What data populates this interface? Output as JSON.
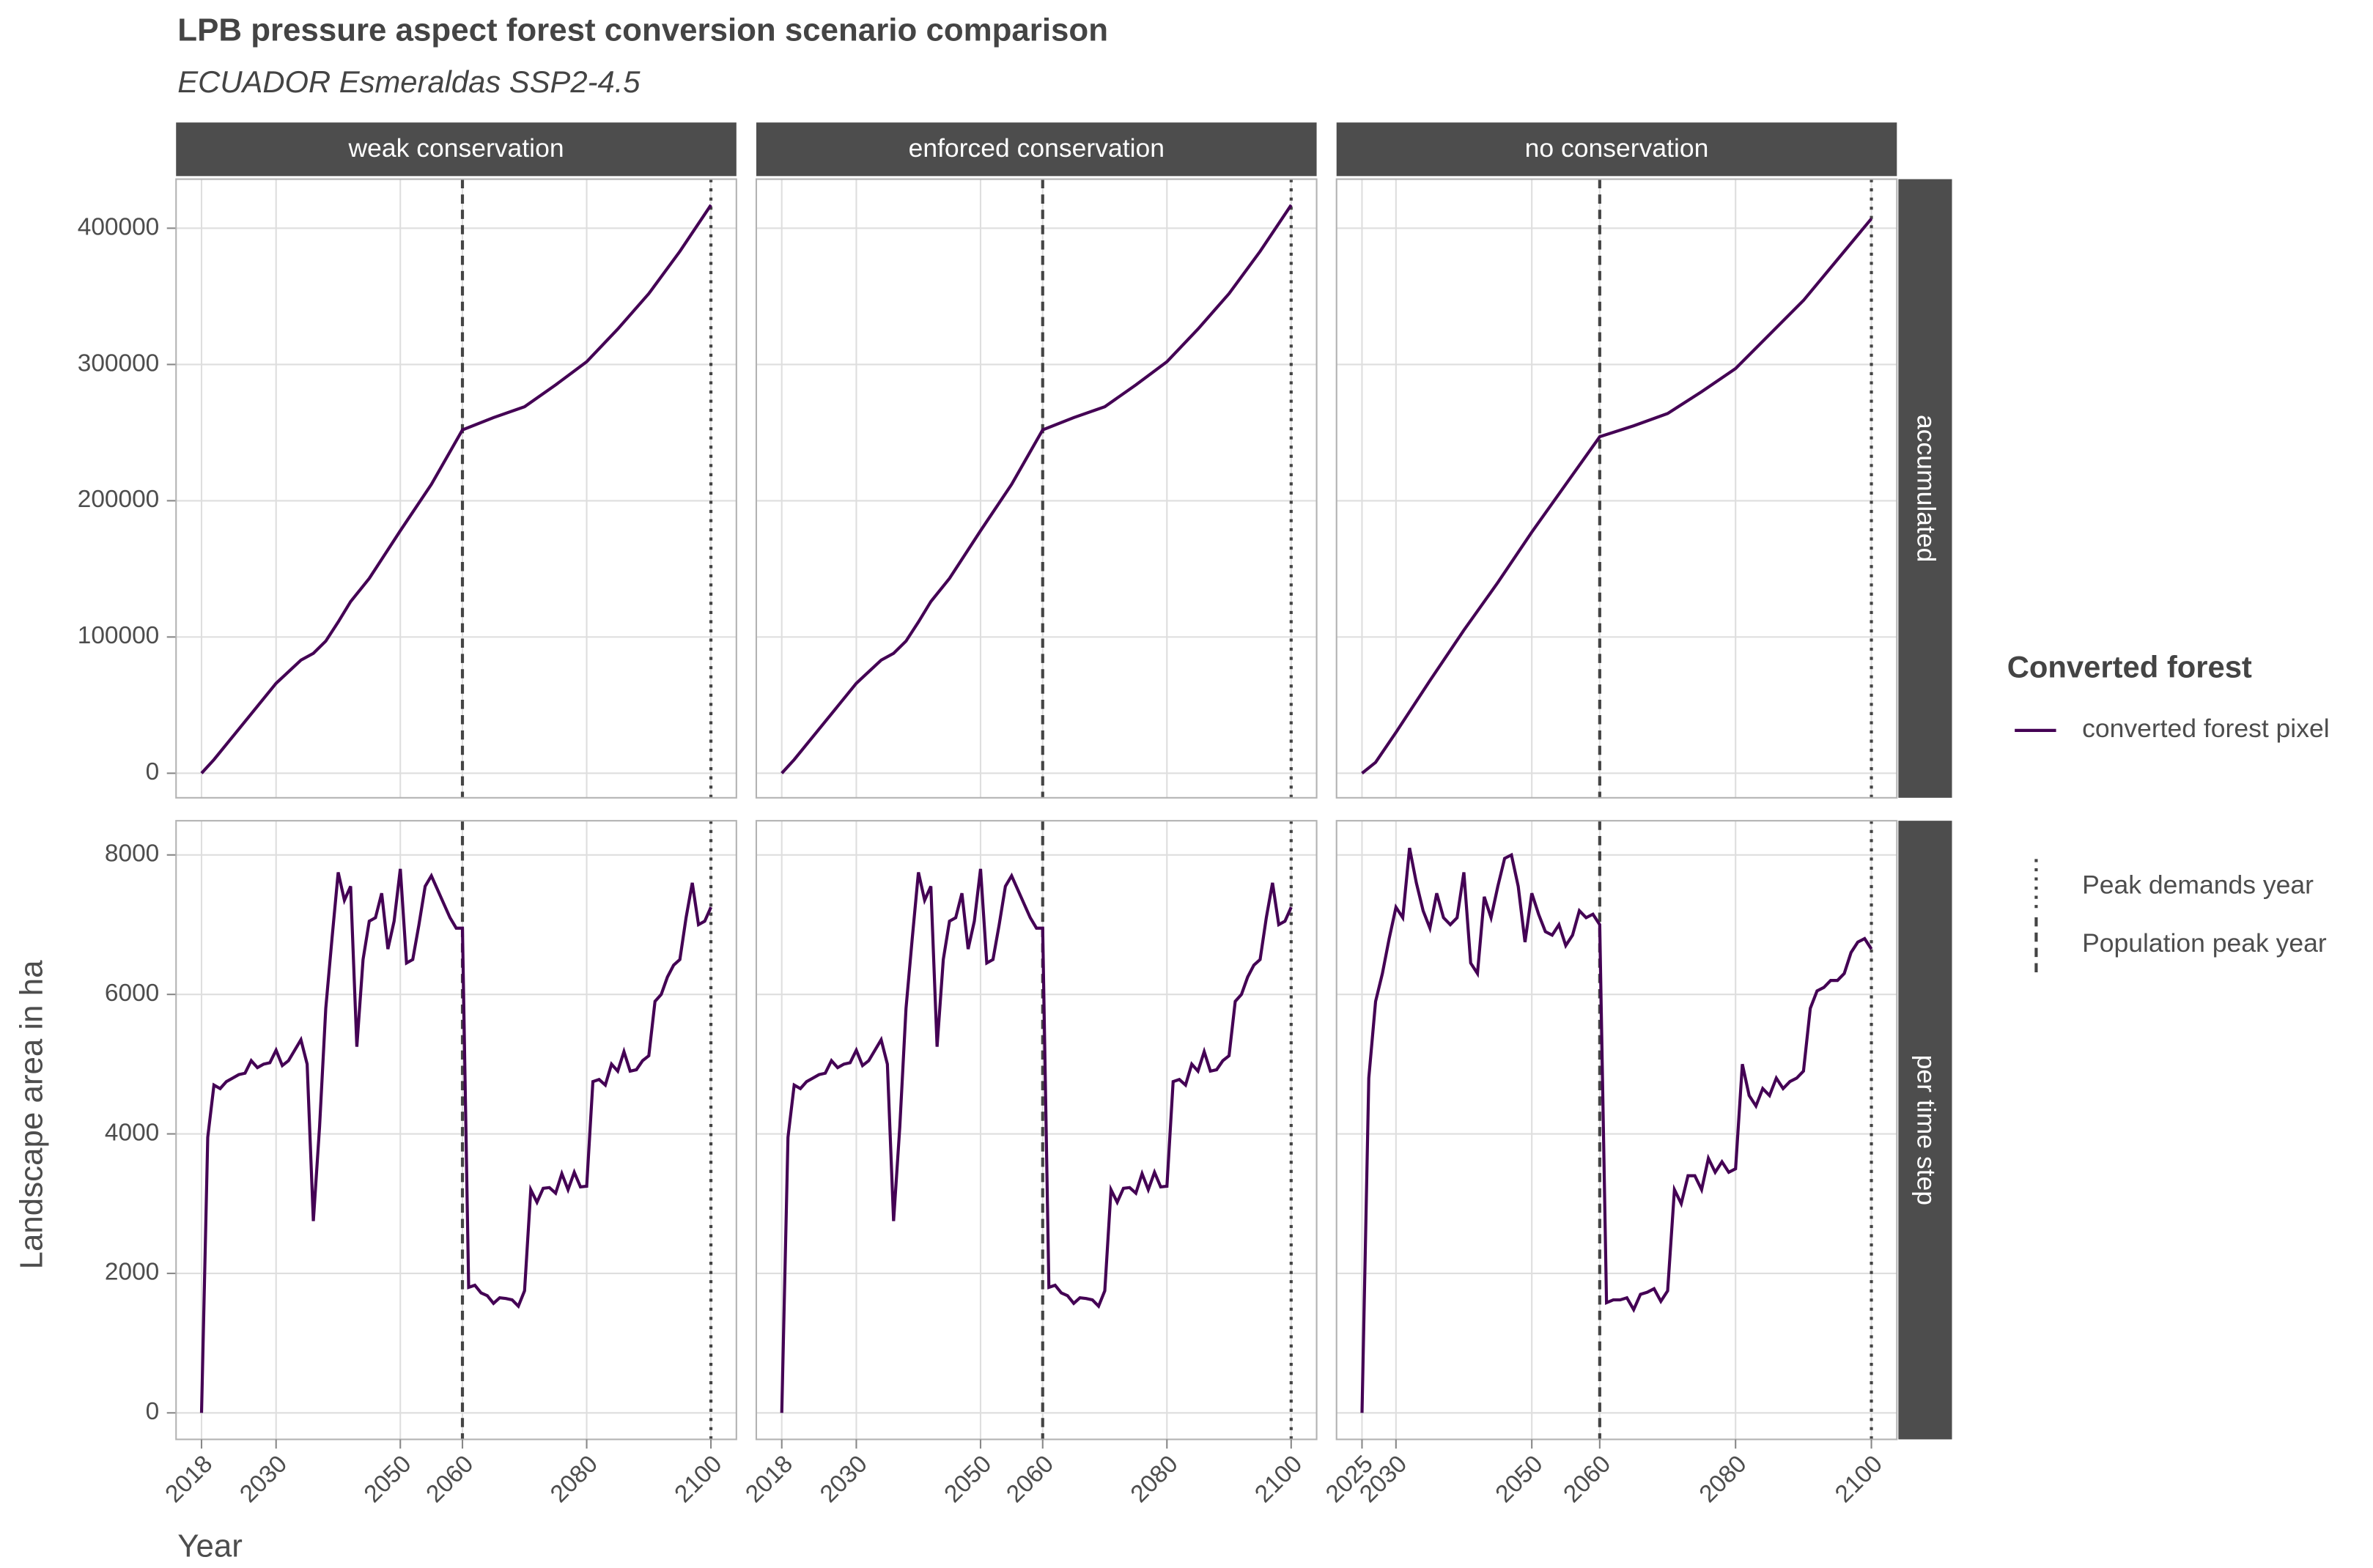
{
  "chart_data": {
    "type": "line",
    "title": "LPB pressure aspect forest conversion scenario comparison",
    "subtitle": "ECUADOR Esmeraldas SSP2-4.5",
    "x_label": "Year",
    "y_label": "Landscape area in ha",
    "legend_title": "Converted forest",
    "series_name": "converted forest pixel",
    "color": "#440154",
    "grid": true,
    "reference_lines": [
      {
        "name": "Peak demands year",
        "x": 2100,
        "linetype": "dotted"
      },
      {
        "name": "Population peak year",
        "x": 2060,
        "linetype": "dashed"
      }
    ],
    "cols": [
      {
        "label": "weak conservation",
        "xlim": [
          2013.9,
          2104.1
        ],
        "xticks": [
          2018,
          2030,
          2050,
          2060,
          2080,
          2100
        ]
      },
      {
        "label": "enforced conservation",
        "xlim": [
          2013.9,
          2104.1
        ],
        "xticks": [
          2018,
          2030,
          2050,
          2060,
          2080,
          2100
        ]
      },
      {
        "label": "no conservation",
        "xlim": [
          2021.25,
          2103.75
        ],
        "xticks": [
          2025,
          2030,
          2050,
          2060,
          2080,
          2100
        ]
      }
    ],
    "rows": [
      {
        "label": "accumulated",
        "ylim": [
          -18000,
          436000
        ],
        "yticks": [
          0,
          100000,
          200000,
          300000,
          400000
        ]
      },
      {
        "label": "per time step",
        "ylim": [
          -380,
          8490
        ],
        "yticks": [
          0,
          2000,
          4000,
          6000,
          8000
        ]
      }
    ],
    "panels": [
      [
        {
          "x": [
            2018,
            2020,
            2025,
            2030,
            2034,
            2036,
            2038,
            2040,
            2042,
            2045,
            2050,
            2055,
            2060,
            2065,
            2070,
            2075,
            2080,
            2085,
            2090,
            2095,
            2100
          ],
          "values": [
            0,
            10000,
            38000,
            66000,
            83000,
            88000,
            97000,
            111000,
            126000,
            143000,
            178000,
            212000,
            252000,
            261000,
            269000,
            285000,
            302000,
            326000,
            352000,
            383000,
            417000
          ]
        },
        {
          "x": [
            2018,
            2020,
            2025,
            2030,
            2034,
            2036,
            2038,
            2040,
            2042,
            2045,
            2050,
            2055,
            2060,
            2065,
            2070,
            2075,
            2080,
            2085,
            2090,
            2095,
            2100
          ],
          "values": [
            0,
            10000,
            38000,
            66000,
            83000,
            88000,
            97000,
            111000,
            126000,
            143000,
            178000,
            212000,
            252000,
            261000,
            269000,
            285000,
            302000,
            326000,
            352000,
            383000,
            417000
          ]
        },
        {
          "x": [
            2025,
            2027,
            2030,
            2035,
            2040,
            2045,
            2050,
            2055,
            2060,
            2065,
            2070,
            2075,
            2080,
            2085,
            2090,
            2095,
            2100
          ],
          "values": [
            0,
            8000,
            30000,
            68000,
            105000,
            140000,
            177000,
            212000,
            247000,
            255000,
            264000,
            280000,
            297000,
            322000,
            347000,
            377000,
            407000
          ]
        }
      ],
      [
        {
          "x": [
            2018,
            2019,
            2020,
            2021,
            2022,
            2023,
            2024,
            2025,
            2026,
            2027,
            2028,
            2029,
            2030,
            2031,
            2032,
            2033,
            2034,
            2035,
            2036,
            2037,
            2038,
            2039,
            2040,
            2041,
            2042,
            2043,
            2044,
            2045,
            2046,
            2047,
            2048,
            2049,
            2050,
            2051,
            2052,
            2053,
            2054,
            2055,
            2056,
            2057,
            2058,
            2059,
            2060,
            2061,
            2062,
            2063,
            2064,
            2065,
            2066,
            2067,
            2068,
            2069,
            2070,
            2071,
            2072,
            2073,
            2074,
            2075,
            2076,
            2077,
            2078,
            2079,
            2080,
            2081,
            2082,
            2083,
            2084,
            2085,
            2086,
            2087,
            2088,
            2089,
            2090,
            2091,
            2092,
            2093,
            2094,
            2095,
            2096,
            2097,
            2098,
            2099,
            2100
          ],
          "values": [
            0,
            3950,
            4700,
            4650,
            4750,
            4800,
            4850,
            4870,
            5050,
            4950,
            5000,
            5020,
            5200,
            4980,
            5050,
            5200,
            5350,
            5000,
            2750,
            4100,
            5800,
            6800,
            7750,
            7350,
            7550,
            5250,
            6500,
            7050,
            7100,
            7450,
            6650,
            7050,
            7800,
            6450,
            6500,
            7000,
            7550,
            7700,
            7500,
            7300,
            7100,
            6950,
            6950,
            1800,
            1830,
            1720,
            1680,
            1570,
            1650,
            1640,
            1620,
            1530,
            1750,
            3200,
            3020,
            3220,
            3230,
            3150,
            3430,
            3200,
            3450,
            3240,
            3250,
            4750,
            4780,
            4700,
            5000,
            4900,
            5180,
            4900,
            4920,
            5050,
            5120,
            5900,
            6000,
            6250,
            6420,
            6500,
            7100,
            7600,
            7000,
            7050,
            7250
          ]
        },
        {
          "x": [
            2018,
            2019,
            2020,
            2021,
            2022,
            2023,
            2024,
            2025,
            2026,
            2027,
            2028,
            2029,
            2030,
            2031,
            2032,
            2033,
            2034,
            2035,
            2036,
            2037,
            2038,
            2039,
            2040,
            2041,
            2042,
            2043,
            2044,
            2045,
            2046,
            2047,
            2048,
            2049,
            2050,
            2051,
            2052,
            2053,
            2054,
            2055,
            2056,
            2057,
            2058,
            2059,
            2060,
            2061,
            2062,
            2063,
            2064,
            2065,
            2066,
            2067,
            2068,
            2069,
            2070,
            2071,
            2072,
            2073,
            2074,
            2075,
            2076,
            2077,
            2078,
            2079,
            2080,
            2081,
            2082,
            2083,
            2084,
            2085,
            2086,
            2087,
            2088,
            2089,
            2090,
            2091,
            2092,
            2093,
            2094,
            2095,
            2096,
            2097,
            2098,
            2099,
            2100
          ],
          "values": [
            0,
            3950,
            4700,
            4650,
            4750,
            4800,
            4850,
            4870,
            5050,
            4950,
            5000,
            5020,
            5200,
            4980,
            5050,
            5200,
            5350,
            5000,
            2750,
            4100,
            5800,
            6800,
            7750,
            7350,
            7550,
            5250,
            6500,
            7050,
            7100,
            7450,
            6650,
            7050,
            7800,
            6450,
            6500,
            7000,
            7550,
            7700,
            7500,
            7300,
            7100,
            6950,
            6950,
            1800,
            1830,
            1720,
            1680,
            1570,
            1650,
            1640,
            1620,
            1530,
            1750,
            3200,
            3020,
            3220,
            3230,
            3150,
            3430,
            3200,
            3450,
            3240,
            3250,
            4750,
            4780,
            4700,
            5000,
            4900,
            5180,
            4900,
            4920,
            5050,
            5120,
            5900,
            6000,
            6250,
            6420,
            6500,
            7100,
            7600,
            7000,
            7050,
            7250
          ]
        },
        {
          "x": [
            2025,
            2026,
            2027,
            2028,
            2029,
            2030,
            2031,
            2032,
            2033,
            2034,
            2035,
            2036,
            2037,
            2038,
            2039,
            2040,
            2041,
            2042,
            2043,
            2044,
            2045,
            2046,
            2047,
            2048,
            2049,
            2050,
            2051,
            2052,
            2053,
            2054,
            2055,
            2056,
            2057,
            2058,
            2059,
            2060,
            2061,
            2062,
            2063,
            2064,
            2065,
            2066,
            2067,
            2068,
            2069,
            2070,
            2071,
            2072,
            2073,
            2074,
            2075,
            2076,
            2077,
            2078,
            2079,
            2080,
            2081,
            2082,
            2083,
            2084,
            2085,
            2086,
            2087,
            2088,
            2089,
            2090,
            2091,
            2092,
            2093,
            2094,
            2095,
            2096,
            2097,
            2098,
            2099,
            2100
          ],
          "values": [
            0,
            4800,
            5900,
            6300,
            6800,
            7250,
            7100,
            8100,
            7600,
            7200,
            6950,
            7450,
            7100,
            7000,
            7100,
            7750,
            6450,
            6300,
            7400,
            7100,
            7550,
            7950,
            8000,
            7550,
            6750,
            7450,
            7150,
            6900,
            6850,
            7000,
            6700,
            6850,
            7200,
            7100,
            7150,
            7000,
            1580,
            1620,
            1620,
            1650,
            1480,
            1700,
            1730,
            1780,
            1600,
            1750,
            3200,
            3000,
            3400,
            3400,
            3200,
            3650,
            3450,
            3600,
            3450,
            3500,
            5000,
            4550,
            4400,
            4650,
            4550,
            4800,
            4650,
            4750,
            4800,
            4900,
            5800,
            6050,
            6100,
            6200,
            6200,
            6300,
            6600,
            6750,
            6800,
            6650
          ]
        }
      ]
    ]
  }
}
